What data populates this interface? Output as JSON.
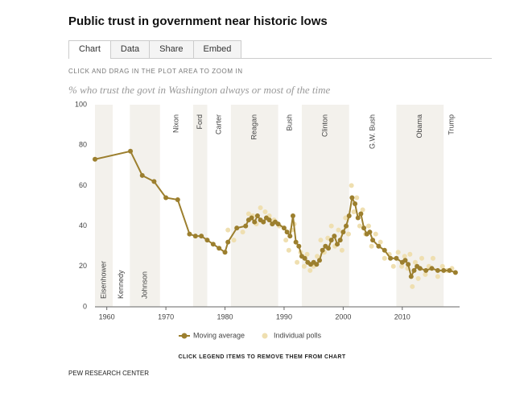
{
  "header": {
    "title": "Public trust in government near historic lows",
    "tabs": [
      "Chart",
      "Data",
      "Share",
      "Embed"
    ],
    "instruction": "CLICK AND DRAG IN THE PLOT AREA TO ZOOM IN"
  },
  "chart_data": {
    "type": "line",
    "subtitle": "% who trust the govt in Washington always or most of the time",
    "xlim": [
      1958,
      2019.7
    ],
    "xticks": [
      1960,
      1970,
      1980,
      1990,
      2000,
      2010
    ],
    "ylim": [
      0,
      100
    ],
    "yticks": [
      0,
      20,
      40,
      60,
      80,
      100
    ],
    "band_color": "#f3f1ec",
    "annotations": [
      {
        "label": "Eisenhower",
        "start": 1958,
        "end": 1961,
        "color": "#b5473a",
        "label_at": "bottom",
        "band": true
      },
      {
        "label": "Kennedy",
        "start": 1961,
        "end": 1963.9,
        "color": "#3d5f7a",
        "label_at": "bottom",
        "band": false
      },
      {
        "label": "Johnson",
        "start": 1963.9,
        "end": 1969,
        "color": "#3d5f7a",
        "label_at": "bottom",
        "band": true
      },
      {
        "label": "Nixon",
        "start": 1969,
        "end": 1974.6,
        "color": "#b5473a",
        "label_at": "top",
        "band": false
      },
      {
        "label": "Ford",
        "start": 1974.6,
        "end": 1977,
        "color": "#b5473a",
        "label_at": "top",
        "band": true
      },
      {
        "label": "Carter",
        "start": 1977,
        "end": 1981,
        "color": "#3d5f7a",
        "label_at": "top",
        "band": false
      },
      {
        "label": "Reagan",
        "start": 1981,
        "end": 1989,
        "color": "#b5473a",
        "label_at": "top",
        "band": true
      },
      {
        "label": "Bush",
        "start": 1989,
        "end": 1993,
        "color": "#b5473a",
        "label_at": "top",
        "band": false
      },
      {
        "label": "Clinton",
        "start": 1993,
        "end": 2001,
        "color": "#3d5f7a",
        "label_at": "top",
        "band": true
      },
      {
        "label": "G.W. Bush",
        "start": 2001,
        "end": 2009,
        "color": "#b5473a",
        "label_at": "top",
        "band": false
      },
      {
        "label": "Obama",
        "start": 2009,
        "end": 2017,
        "color": "#3d5f7a",
        "label_at": "top",
        "band": true
      },
      {
        "label": "Trump",
        "start": 2017,
        "end": 2019.7,
        "color": "#b5473a",
        "label_at": "top",
        "band": false
      }
    ],
    "series": [
      {
        "name": "Individual polls",
        "color": "#efdfb0",
        "line": false,
        "x": [
          1980.5,
          1981.5,
          1983,
          1984,
          1984.7,
          1985.3,
          1986,
          1986.8,
          1987.5,
          1988.3,
          1989.2,
          1990.3,
          1990.8,
          1991.3,
          1991.7,
          1992.2,
          1992.8,
          1993.4,
          1993.9,
          1994.4,
          1995,
          1995.6,
          1996.2,
          1996.8,
          1997.4,
          1998,
          1998.6,
          1999.2,
          1999.8,
          2000.4,
          2000.9,
          2001.4,
          2001.8,
          2002.3,
          2002.8,
          2003.3,
          2003.8,
          2004.3,
          2004.8,
          2005.5,
          2006.3,
          2007,
          2007.8,
          2008.5,
          2009.3,
          2009.9,
          2010.4,
          2010.9,
          2011.3,
          2011.7,
          2012.2,
          2012.7,
          2013.3,
          2013.9,
          2014.5,
          2015.2,
          2016,
          2016.8,
          2017.6,
          2018.4
        ],
        "values": [
          38,
          33,
          37,
          46,
          45,
          41,
          49,
          47,
          45,
          43,
          40,
          33,
          28,
          38,
          41,
          22,
          27,
          20,
          26,
          18,
          20,
          25,
          33,
          27,
          34,
          40,
          30,
          38,
          28,
          44,
          36,
          60,
          47,
          54,
          40,
          48,
          36,
          40,
          30,
          36,
          32,
          24,
          26,
          20,
          27,
          20,
          25,
          19,
          26,
          10,
          22,
          14,
          24,
          16,
          20,
          24,
          15,
          20,
          18,
          19
        ]
      },
      {
        "name": "Moving average",
        "color": "#9c7f2e",
        "line": true,
        "x": [
          1958,
          1964,
          1966,
          1968,
          1970,
          1972,
          1974,
          1975,
          1976,
          1977,
          1978,
          1979,
          1980,
          1980.5,
          1982,
          1983.5,
          1984,
          1984.5,
          1985,
          1985.5,
          1986,
          1986.5,
          1987,
          1987.5,
          1988,
          1988.5,
          1989,
          1990,
          1990.5,
          1991,
          1991.5,
          1992,
          1992.5,
          1993,
          1993.5,
          1994,
          1994.5,
          1995,
          1995.5,
          1996,
          1996.5,
          1997,
          1997.5,
          1998,
          1998.5,
          1999,
          1999.5,
          2000,
          2000.5,
          2001,
          2001.5,
          2002,
          2002.5,
          2003,
          2003.5,
          2004,
          2004.5,
          2005,
          2006,
          2007,
          2008,
          2009,
          2010,
          2010.5,
          2011,
          2011.5,
          2012,
          2012.5,
          2013,
          2014,
          2015,
          2016,
          2017,
          2018,
          2019
        ],
        "values": [
          73,
          77,
          65,
          62,
          54,
          53,
          36,
          35,
          35,
          33,
          31,
          29,
          27,
          32,
          39,
          40,
          43,
          44,
          42,
          45,
          43,
          42,
          44,
          43,
          41,
          42,
          41,
          39,
          37,
          35,
          45,
          32,
          30,
          25,
          24,
          22,
          21,
          22,
          21,
          23,
          28,
          30,
          29,
          33,
          35,
          31,
          33,
          37,
          40,
          45,
          54,
          51,
          44,
          46,
          39,
          36,
          37,
          33,
          30,
          28,
          24,
          24,
          22,
          23,
          21,
          15,
          18,
          20,
          19,
          18,
          19,
          18,
          18,
          18,
          17
        ]
      }
    ]
  },
  "footer": {
    "note": "CLICK LEGEND ITEMS TO REMOVE THEM FROM CHART",
    "source": "PEW RESEARCH CENTER"
  }
}
